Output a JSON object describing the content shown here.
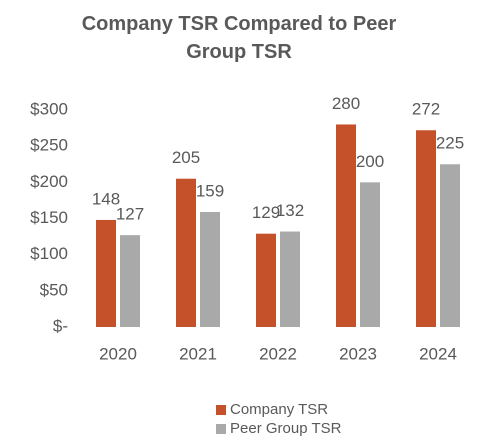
{
  "chart_data": {
    "type": "bar",
    "title": "Company TSR Compared to Peer Group TSR",
    "categories": [
      "2020",
      "2021",
      "2022",
      "2023",
      "2024"
    ],
    "series": [
      {
        "name": "Company TSR",
        "color": "#c4512a",
        "values": [
          148,
          205,
          129,
          280,
          272
        ]
      },
      {
        "name": "Peer Group TSR",
        "color": "#a9a9a9",
        "values": [
          127,
          159,
          132,
          200,
          225
        ]
      }
    ],
    "ylim": [
      0,
      300
    ],
    "yticks": [
      {
        "value": 0,
        "label": "$-"
      },
      {
        "value": 50,
        "label": "$50"
      },
      {
        "value": 100,
        "label": "$100"
      },
      {
        "value": 150,
        "label": "$150"
      },
      {
        "value": 200,
        "label": "$200"
      },
      {
        "value": 250,
        "label": "$250"
      },
      {
        "value": 300,
        "label": "$300"
      }
    ],
    "grid": false,
    "legend": "bottom"
  }
}
